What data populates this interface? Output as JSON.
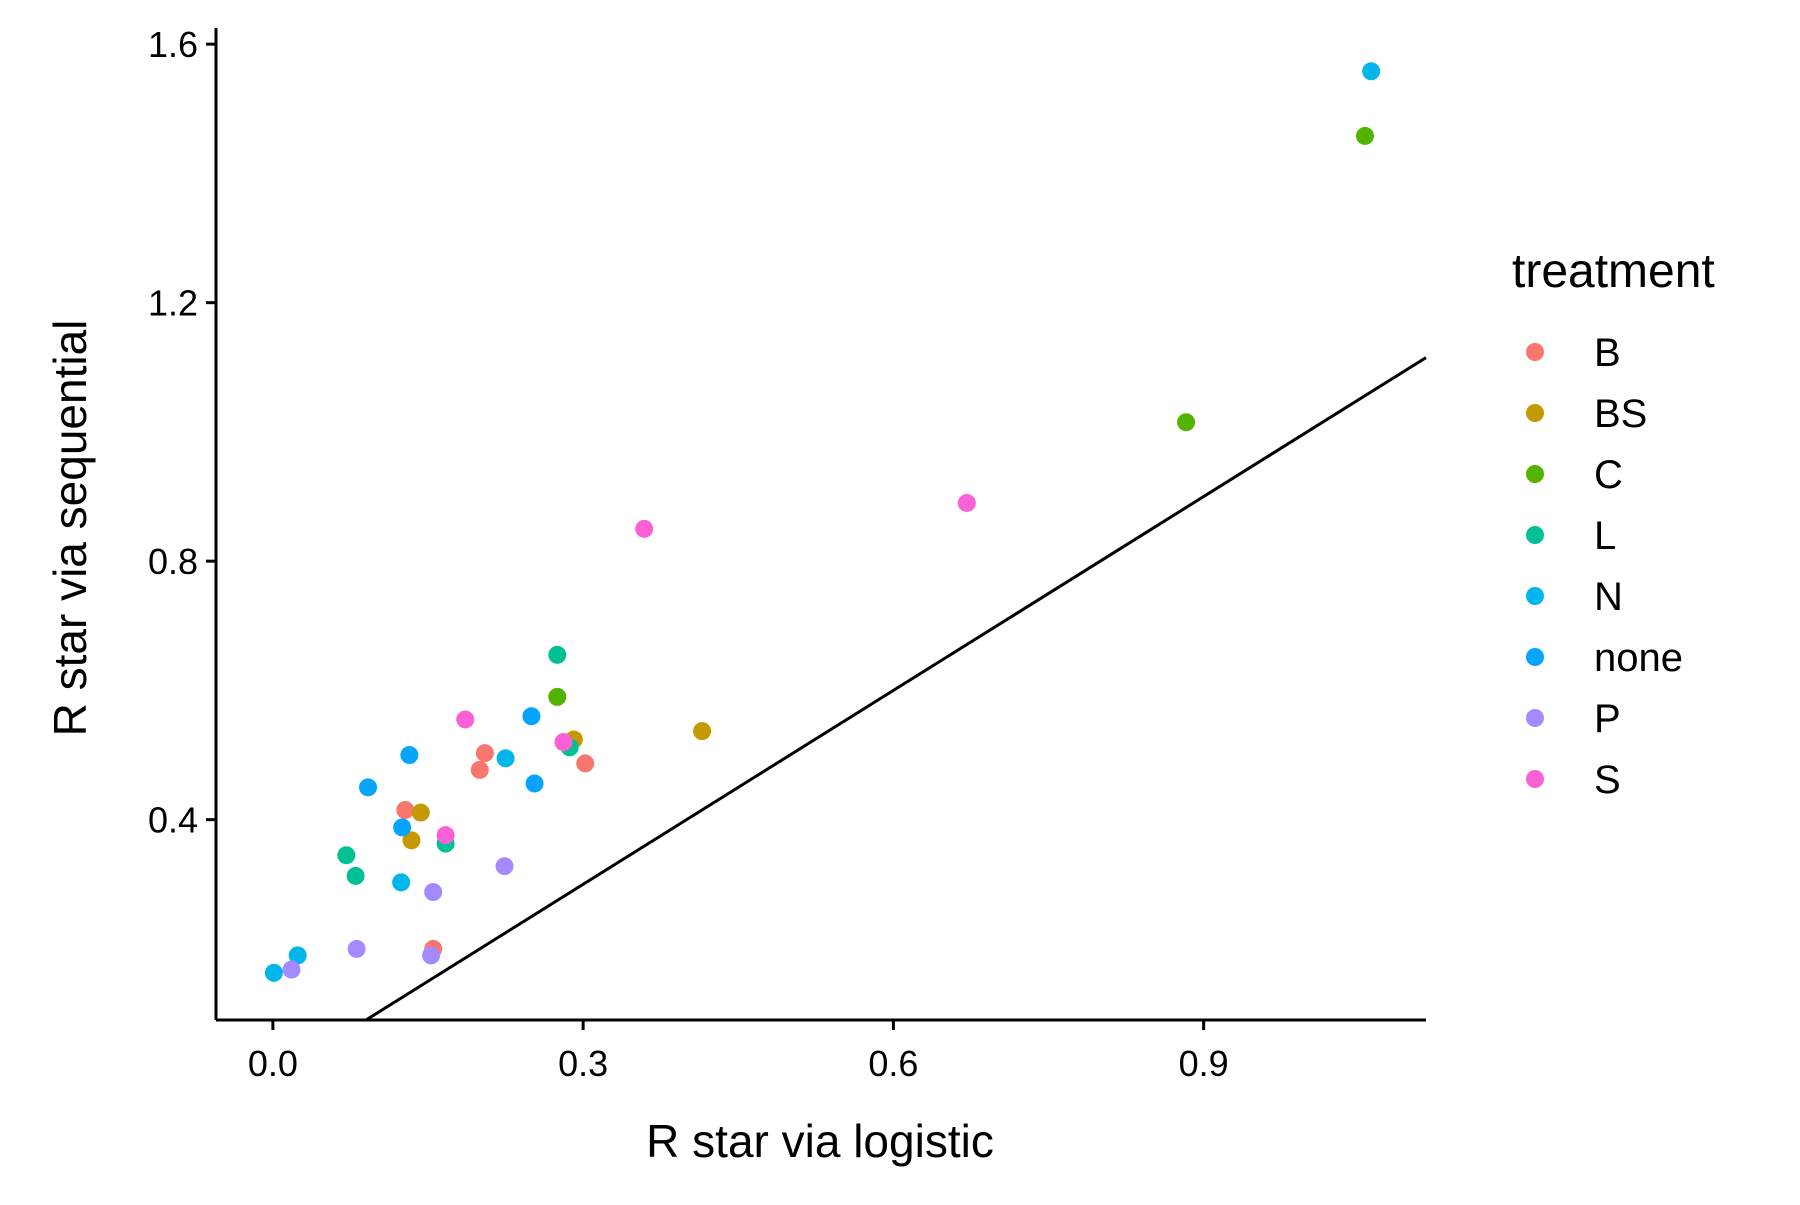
{
  "chart_data": {
    "type": "scatter",
    "title": "",
    "xlabel": "R star via logistic",
    "ylabel": "R star via sequential",
    "xlim": [
      -0.055,
      1.115
    ],
    "ylim": [
      0.09,
      1.625
    ],
    "xticks": [
      0.0,
      0.3,
      0.6,
      0.9
    ],
    "xtick_labels": [
      "0.0",
      "0.3",
      "0.6",
      "0.9"
    ],
    "yticks": [
      0.4,
      0.8,
      1.2,
      1.6
    ],
    "ytick_labels": [
      "0.4",
      "0.8",
      "1.2",
      "1.6"
    ],
    "grid": false,
    "reference_line": {
      "type": "identity",
      "slope": 1,
      "intercept": 0
    },
    "legend": {
      "title": "treatment",
      "position": "right"
    },
    "series": [
      {
        "name": "B",
        "color": "#F8766D",
        "points": [
          [
            0.128,
            0.415
          ],
          [
            0.2,
            0.477
          ],
          [
            0.205,
            0.503
          ],
          [
            0.302,
            0.487
          ],
          [
            0.155,
            0.2
          ]
        ]
      },
      {
        "name": "BS",
        "color": "#C49A00",
        "points": [
          [
            0.143,
            0.411
          ],
          [
            0.134,
            0.368
          ],
          [
            0.291,
            0.524
          ],
          [
            0.415,
            0.537
          ]
        ]
      },
      {
        "name": "C",
        "color": "#53B400",
        "points": [
          [
            0.275,
            0.59
          ],
          [
            0.883,
            1.015
          ],
          [
            1.056,
            1.458
          ]
        ]
      },
      {
        "name": "L",
        "color": "#00C094",
        "points": [
          [
            0.275,
            0.655
          ],
          [
            0.287,
            0.512
          ],
          [
            0.071,
            0.345
          ],
          [
            0.08,
            0.313
          ],
          [
            0.167,
            0.363
          ]
        ]
      },
      {
        "name": "N",
        "color": "#00B6EB",
        "points": [
          [
            1.062,
            1.558
          ],
          [
            0.225,
            0.495
          ],
          [
            0.124,
            0.303
          ],
          [
            0.024,
            0.19
          ],
          [
            0.001,
            0.163
          ]
        ]
      },
      {
        "name": "none",
        "color": "#06A4FF",
        "points": [
          [
            0.25,
            0.56
          ],
          [
            0.132,
            0.5
          ],
          [
            0.092,
            0.45
          ],
          [
            0.125,
            0.388
          ],
          [
            0.253,
            0.456
          ]
        ]
      },
      {
        "name": "P",
        "color": "#A58AFF",
        "points": [
          [
            0.224,
            0.328
          ],
          [
            0.155,
            0.288
          ],
          [
            0.081,
            0.2
          ],
          [
            0.153,
            0.19
          ],
          [
            0.018,
            0.168
          ]
        ]
      },
      {
        "name": "S",
        "color": "#FB61D7",
        "points": [
          [
            0.359,
            0.85
          ],
          [
            0.671,
            0.89
          ],
          [
            0.186,
            0.555
          ],
          [
            0.281,
            0.52
          ],
          [
            0.167,
            0.376
          ]
        ]
      }
    ]
  }
}
